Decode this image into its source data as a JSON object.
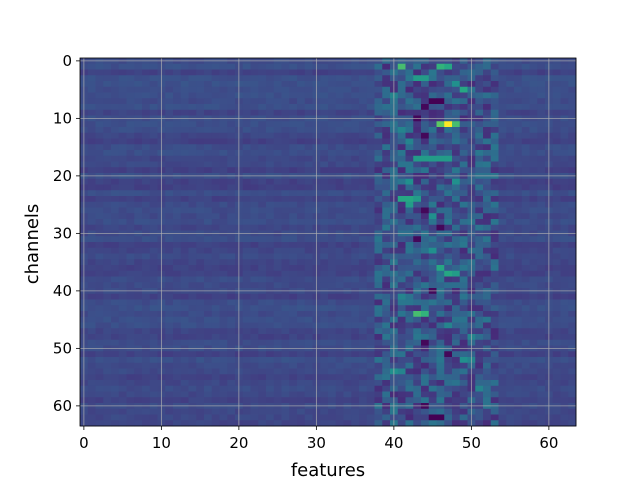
{
  "chart_data": {
    "type": "heatmap",
    "title": "",
    "xlabel": "features",
    "ylabel": "channels",
    "colormap": "viridis",
    "rows": 64,
    "cols": 64,
    "xlim": [
      -0.5,
      63.5
    ],
    "ylim": [
      63.5,
      -0.5
    ],
    "y_inverted": true,
    "grid": true,
    "x_ticks": [
      0,
      10,
      20,
      30,
      40,
      50,
      60
    ],
    "y_ticks": [
      0,
      10,
      20,
      30,
      40,
      50,
      60
    ],
    "x_tick_labels": [
      "0",
      "10",
      "20",
      "30",
      "40",
      "50",
      "60"
    ],
    "y_tick_labels": [
      "0",
      "10",
      "20",
      "30",
      "40",
      "50",
      "60"
    ],
    "value_range": [
      0,
      1
    ],
    "active_feature_band": [
      38,
      53
    ],
    "peak_cell": {
      "channel": 11,
      "feature": 47,
      "value": 1.0
    },
    "bright_cells": [
      {
        "channel": 1,
        "feature": 41,
        "value": 0.7
      },
      {
        "channel": 1,
        "feature": 46,
        "value": 0.65
      },
      {
        "channel": 1,
        "feature": 47,
        "value": 0.6
      },
      {
        "channel": 3,
        "feature": 43,
        "value": 0.55
      },
      {
        "channel": 3,
        "feature": 44,
        "value": 0.55
      },
      {
        "channel": 4,
        "feature": 48,
        "value": 0.5
      },
      {
        "channel": 5,
        "feature": 49,
        "value": 0.6
      },
      {
        "channel": 6,
        "feature": 40,
        "value": 0.45
      },
      {
        "channel": 11,
        "feature": 46,
        "value": 0.75
      },
      {
        "channel": 11,
        "feature": 48,
        "value": 0.7
      },
      {
        "channel": 12,
        "feature": 41,
        "value": 0.45
      },
      {
        "channel": 14,
        "feature": 42,
        "value": 0.45
      },
      {
        "channel": 17,
        "feature": 43,
        "value": 0.55
      },
      {
        "channel": 17,
        "feature": 44,
        "value": 0.55
      },
      {
        "channel": 17,
        "feature": 45,
        "value": 0.55
      },
      {
        "channel": 17,
        "feature": 46,
        "value": 0.55
      },
      {
        "channel": 17,
        "feature": 47,
        "value": 0.55
      },
      {
        "channel": 21,
        "feature": 42,
        "value": 0.5
      },
      {
        "channel": 21,
        "feature": 48,
        "value": 0.5
      },
      {
        "channel": 24,
        "feature": 41,
        "value": 0.6
      },
      {
        "channel": 24,
        "feature": 42,
        "value": 0.6
      },
      {
        "channel": 24,
        "feature": 43,
        "value": 0.55
      },
      {
        "channel": 25,
        "feature": 42,
        "value": 0.55
      },
      {
        "channel": 27,
        "feature": 45,
        "value": 0.5
      },
      {
        "channel": 33,
        "feature": 45,
        "value": 0.5
      },
      {
        "channel": 36,
        "feature": 46,
        "value": 0.6
      },
      {
        "channel": 37,
        "feature": 47,
        "value": 0.6
      },
      {
        "channel": 37,
        "feature": 48,
        "value": 0.55
      },
      {
        "channel": 41,
        "feature": 41,
        "value": 0.45
      },
      {
        "channel": 44,
        "feature": 43,
        "value": 0.7
      },
      {
        "channel": 44,
        "feature": 44,
        "value": 0.65
      },
      {
        "channel": 46,
        "feature": 47,
        "value": 0.45
      },
      {
        "channel": 48,
        "feature": 50,
        "value": 0.45
      },
      {
        "channel": 52,
        "feature": 49,
        "value": 0.5
      },
      {
        "channel": 52,
        "feature": 50,
        "value": 0.45
      },
      {
        "channel": 54,
        "feature": 40,
        "value": 0.5
      },
      {
        "channel": 54,
        "feature": 41,
        "value": 0.45
      },
      {
        "channel": 57,
        "feature": 51,
        "value": 0.45
      }
    ],
    "dark_cells": [
      {
        "channel": 7,
        "feature": 45,
        "value": 0.0
      },
      {
        "channel": 7,
        "feature": 46,
        "value": 0.0
      },
      {
        "channel": 8,
        "feature": 44,
        "value": 0.02
      },
      {
        "channel": 10,
        "feature": 43,
        "value": 0.02
      },
      {
        "channel": 13,
        "feature": 44,
        "value": 0.02
      },
      {
        "channel": 26,
        "feature": 44,
        "value": 0.02
      },
      {
        "channel": 29,
        "feature": 46,
        "value": 0.02
      },
      {
        "channel": 31,
        "feature": 43,
        "value": 0.02
      },
      {
        "channel": 40,
        "feature": 45,
        "value": 0.02
      },
      {
        "channel": 49,
        "feature": 44,
        "value": 0.02
      },
      {
        "channel": 51,
        "feature": 47,
        "value": 0.02
      },
      {
        "channel": 60,
        "feature": 44,
        "value": 0.02
      },
      {
        "channel": 62,
        "feature": 45,
        "value": 0.0
      },
      {
        "channel": 62,
        "feature": 46,
        "value": 0.0
      }
    ]
  }
}
